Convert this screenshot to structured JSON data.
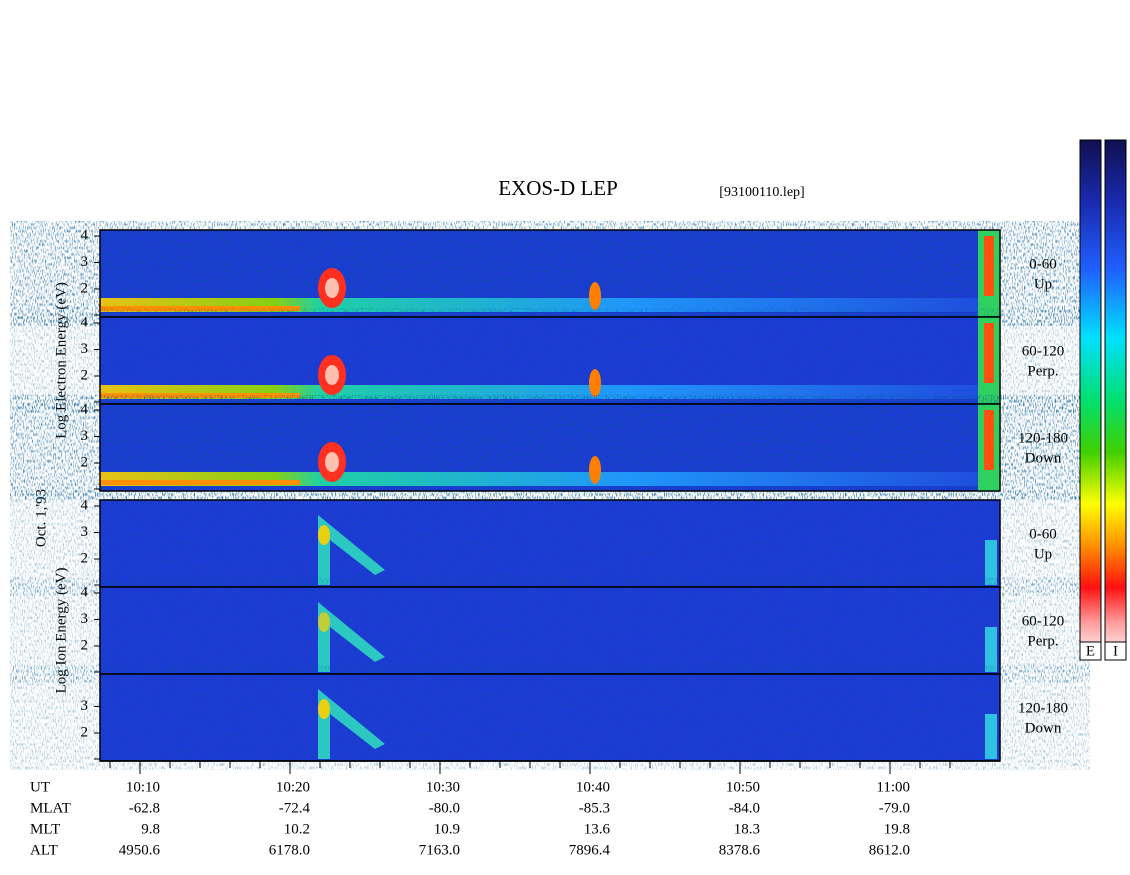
{
  "header": {
    "title": "EXOS-D LEP",
    "file": "[93100110.lep]"
  },
  "date_label": "Oct. 1,'93",
  "groups": [
    {
      "label": "Log Electron Energy (eV)",
      "panels": [
        {
          "yticks": [
            2,
            3,
            4
          ],
          "pitch": [
            "0-60",
            "Up"
          ]
        },
        {
          "yticks": [
            2,
            3,
            4
          ],
          "pitch": [
            "60-120",
            "Perp."
          ]
        },
        {
          "yticks": [
            2,
            3,
            4
          ],
          "pitch": [
            "120-180",
            "Down"
          ]
        }
      ]
    },
    {
      "label": "Log Ion Energy (eV)",
      "panels": [
        {
          "yticks": [
            2,
            3,
            4
          ],
          "pitch": [
            "0-60",
            "Up"
          ]
        },
        {
          "yticks": [
            2,
            3,
            4
          ],
          "pitch": [
            "60-120",
            "Perp."
          ]
        },
        {
          "yticks": [
            2,
            3
          ],
          "pitch": [
            "120-180",
            "Down"
          ]
        }
      ]
    }
  ],
  "time_axis": {
    "rows": [
      {
        "name": "UT",
        "values": [
          "10:10",
          "10:20",
          "10:30",
          "10:40",
          "10:50",
          "11:00"
        ]
      },
      {
        "name": "MLAT",
        "values": [
          "-62.8",
          "-72.4",
          "-80.0",
          "-85.3",
          "-84.0",
          "-79.0"
        ]
      },
      {
        "name": "MLT",
        "values": [
          "9.8",
          "10.2",
          "10.9",
          "13.6",
          "18.3",
          "19.8"
        ]
      },
      {
        "name": "ALT",
        "values": [
          "4950.6",
          "6178.0",
          "7163.0",
          "7896.4",
          "8378.6",
          "8612.0"
        ]
      }
    ]
  },
  "colorbars": [
    "E",
    "I"
  ]
}
